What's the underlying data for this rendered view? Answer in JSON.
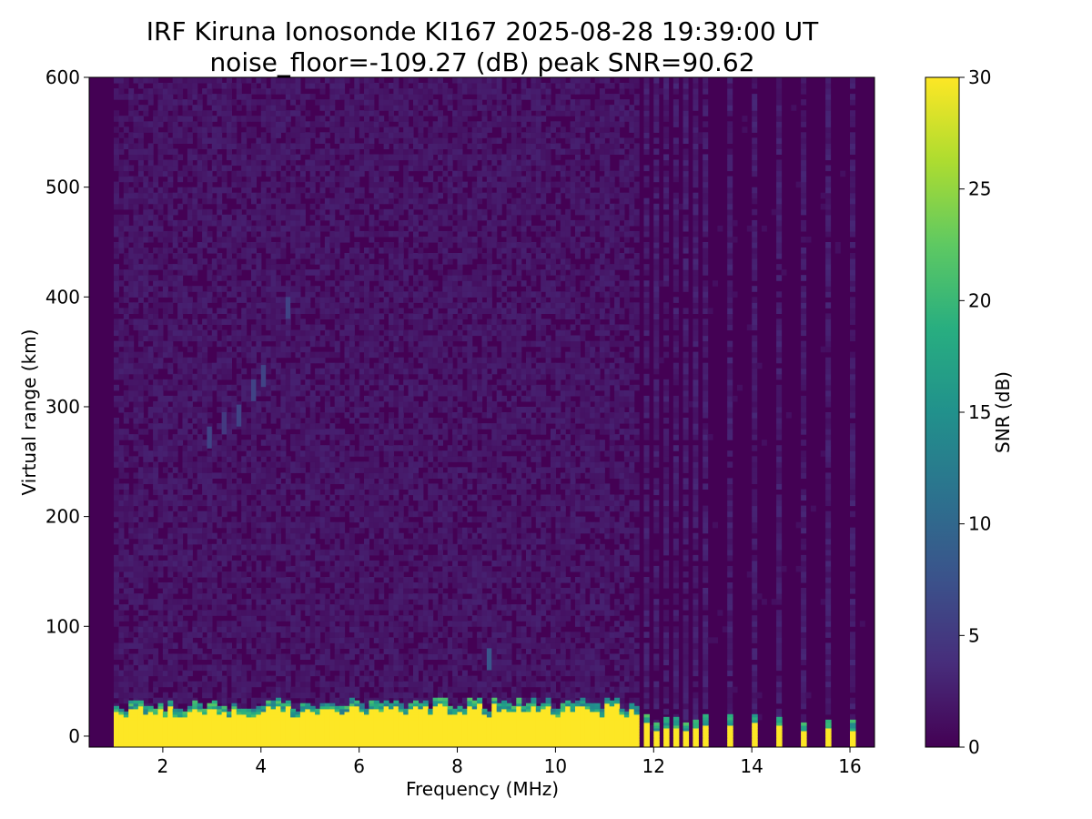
{
  "chart_data": {
    "type": "heatmap",
    "title": "IRF Kiruna Ionosonde KI167 2025-08-28 19:39:00  UT",
    "subtitle": "noise_floor=-109.27 (dB) peak SNR=90.62",
    "xlabel": "Frequency (MHz)",
    "ylabel": "Virtual range (km)",
    "xlim": [
      0.5,
      16.5
    ],
    "ylim": [
      -10,
      600
    ],
    "xticks": [
      "2",
      "4",
      "6",
      "8",
      "10",
      "12",
      "14",
      "16"
    ],
    "yticks": [
      "0",
      "100",
      "200",
      "300",
      "400",
      "500",
      "600"
    ],
    "grid": false,
    "colorbar": {
      "label": "SNR (dB)",
      "range": [
        0,
        30
      ],
      "ticks": [
        "0",
        "5",
        "10",
        "15",
        "20",
        "25",
        "30"
      ],
      "colormap": "viridis"
    },
    "features": {
      "ground_clutter_range_km": [
        0,
        30
      ],
      "ground_clutter_freq_MHz": [
        1.0,
        11.6
      ],
      "ground_clutter_snr_dB": 30,
      "trace_points": [
        {
          "freq_MHz": 2.9,
          "range_km": 272,
          "snr_dB": 6
        },
        {
          "freq_MHz": 3.2,
          "range_km": 285,
          "snr_dB": 5
        },
        {
          "freq_MHz": 3.5,
          "range_km": 292,
          "snr_dB": 6
        },
        {
          "freq_MHz": 3.8,
          "range_km": 315,
          "snr_dB": 6
        },
        {
          "freq_MHz": 4.0,
          "range_km": 328,
          "snr_dB": 6
        },
        {
          "freq_MHz": 4.5,
          "range_km": 390,
          "snr_dB": 6
        },
        {
          "freq_MHz": 8.6,
          "range_km": 70,
          "snr_dB": 8
        }
      ],
      "high_freq_spikes_MHz": [
        11.8,
        12.0,
        12.2,
        12.4,
        12.6,
        12.8,
        13.0,
        13.5,
        14.0,
        14.5,
        15.0,
        15.5,
        16.0
      ],
      "background_snr_dB": 1.5
    }
  }
}
